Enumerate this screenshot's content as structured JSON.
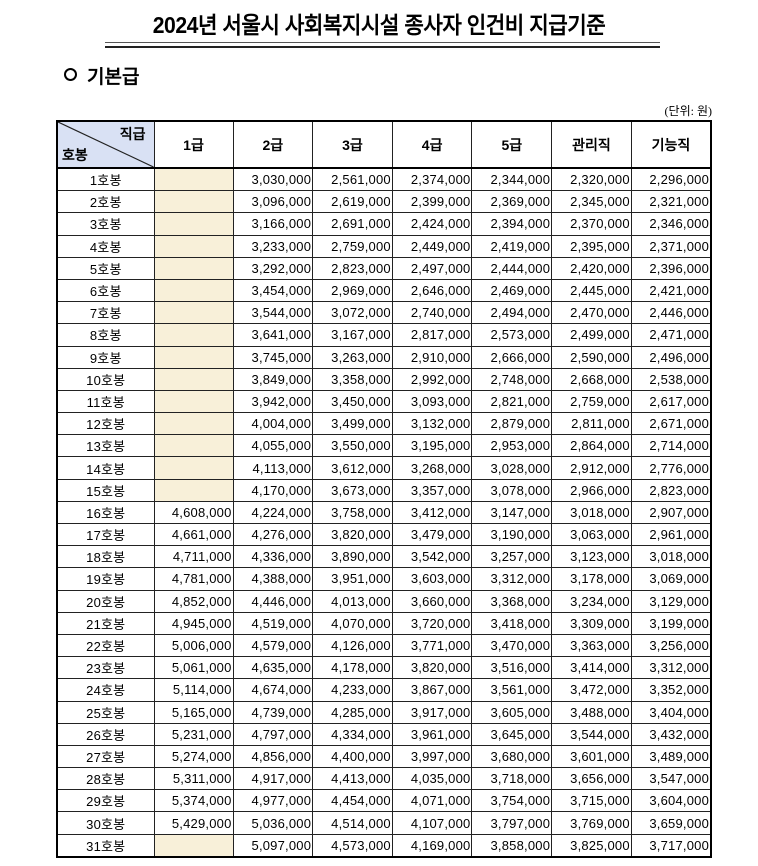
{
  "title": "2024년 서울시 사회복지시설 종사자 인건비 지급기준",
  "section": "기본급",
  "unit": "(단위: 원)",
  "table": {
    "corner_top": "직급",
    "corner_bottom": "호봉",
    "columns": [
      "1급",
      "2급",
      "3급",
      "4급",
      "5급",
      "관리직",
      "기능직"
    ],
    "rows": [
      {
        "step": "1호봉",
        "values": [
          "",
          "3,030,000",
          "2,561,000",
          "2,374,000",
          "2,344,000",
          "2,320,000",
          "2,296,000"
        ]
      },
      {
        "step": "2호봉",
        "values": [
          "",
          "3,096,000",
          "2,619,000",
          "2,399,000",
          "2,369,000",
          "2,345,000",
          "2,321,000"
        ]
      },
      {
        "step": "3호봉",
        "values": [
          "",
          "3,166,000",
          "2,691,000",
          "2,424,000",
          "2,394,000",
          "2,370,000",
          "2,346,000"
        ]
      },
      {
        "step": "4호봉",
        "values": [
          "",
          "3,233,000",
          "2,759,000",
          "2,449,000",
          "2,419,000",
          "2,395,000",
          "2,371,000"
        ]
      },
      {
        "step": "5호봉",
        "values": [
          "",
          "3,292,000",
          "2,823,000",
          "2,497,000",
          "2,444,000",
          "2,420,000",
          "2,396,000"
        ]
      },
      {
        "step": "6호봉",
        "values": [
          "",
          "3,454,000",
          "2,969,000",
          "2,646,000",
          "2,469,000",
          "2,445,000",
          "2,421,000"
        ]
      },
      {
        "step": "7호봉",
        "values": [
          "",
          "3,544,000",
          "3,072,000",
          "2,740,000",
          "2,494,000",
          "2,470,000",
          "2,446,000"
        ]
      },
      {
        "step": "8호봉",
        "values": [
          "",
          "3,641,000",
          "3,167,000",
          "2,817,000",
          "2,573,000",
          "2,499,000",
          "2,471,000"
        ]
      },
      {
        "step": "9호봉",
        "values": [
          "",
          "3,745,000",
          "3,263,000",
          "2,910,000",
          "2,666,000",
          "2,590,000",
          "2,496,000"
        ]
      },
      {
        "step": "10호봉",
        "values": [
          "",
          "3,849,000",
          "3,358,000",
          "2,992,000",
          "2,748,000",
          "2,668,000",
          "2,538,000"
        ]
      },
      {
        "step": "11호봉",
        "values": [
          "",
          "3,942,000",
          "3,450,000",
          "3,093,000",
          "2,821,000",
          "2,759,000",
          "2,617,000"
        ]
      },
      {
        "step": "12호봉",
        "values": [
          "",
          "4,004,000",
          "3,499,000",
          "3,132,000",
          "2,879,000",
          "2,811,000",
          "2,671,000"
        ]
      },
      {
        "step": "13호봉",
        "values": [
          "",
          "4,055,000",
          "3,550,000",
          "3,195,000",
          "2,953,000",
          "2,864,000",
          "2,714,000"
        ]
      },
      {
        "step": "14호봉",
        "values": [
          "",
          "4,113,000",
          "3,612,000",
          "3,268,000",
          "3,028,000",
          "2,912,000",
          "2,776,000"
        ]
      },
      {
        "step": "15호봉",
        "values": [
          "",
          "4,170,000",
          "3,673,000",
          "3,357,000",
          "3,078,000",
          "2,966,000",
          "2,823,000"
        ]
      },
      {
        "step": "16호봉",
        "values": [
          "4,608,000",
          "4,224,000",
          "3,758,000",
          "3,412,000",
          "3,147,000",
          "3,018,000",
          "2,907,000"
        ]
      },
      {
        "step": "17호봉",
        "values": [
          "4,661,000",
          "4,276,000",
          "3,820,000",
          "3,479,000",
          "3,190,000",
          "3,063,000",
          "2,961,000"
        ]
      },
      {
        "step": "18호봉",
        "values": [
          "4,711,000",
          "4,336,000",
          "3,890,000",
          "3,542,000",
          "3,257,000",
          "3,123,000",
          "3,018,000"
        ]
      },
      {
        "step": "19호봉",
        "values": [
          "4,781,000",
          "4,388,000",
          "3,951,000",
          "3,603,000",
          "3,312,000",
          "3,178,000",
          "3,069,000"
        ]
      },
      {
        "step": "20호봉",
        "values": [
          "4,852,000",
          "4,446,000",
          "4,013,000",
          "3,660,000",
          "3,368,000",
          "3,234,000",
          "3,129,000"
        ]
      },
      {
        "step": "21호봉",
        "values": [
          "4,945,000",
          "4,519,000",
          "4,070,000",
          "3,720,000",
          "3,418,000",
          "3,309,000",
          "3,199,000"
        ]
      },
      {
        "step": "22호봉",
        "values": [
          "5,006,000",
          "4,579,000",
          "4,126,000",
          "3,771,000",
          "3,470,000",
          "3,363,000",
          "3,256,000"
        ]
      },
      {
        "step": "23호봉",
        "values": [
          "5,061,000",
          "4,635,000",
          "4,178,000",
          "3,820,000",
          "3,516,000",
          "3,414,000",
          "3,312,000"
        ]
      },
      {
        "step": "24호봉",
        "values": [
          "5,114,000",
          "4,674,000",
          "4,233,000",
          "3,867,000",
          "3,561,000",
          "3,472,000",
          "3,352,000"
        ]
      },
      {
        "step": "25호봉",
        "values": [
          "5,165,000",
          "4,739,000",
          "4,285,000",
          "3,917,000",
          "3,605,000",
          "3,488,000",
          "3,404,000"
        ]
      },
      {
        "step": "26호봉",
        "values": [
          "5,231,000",
          "4,797,000",
          "4,334,000",
          "3,961,000",
          "3,645,000",
          "3,544,000",
          "3,432,000"
        ]
      },
      {
        "step": "27호봉",
        "values": [
          "5,274,000",
          "4,856,000",
          "4,400,000",
          "3,997,000",
          "3,680,000",
          "3,601,000",
          "3,489,000"
        ]
      },
      {
        "step": "28호봉",
        "values": [
          "5,311,000",
          "4,917,000",
          "4,413,000",
          "4,035,000",
          "3,718,000",
          "3,656,000",
          "3,547,000"
        ]
      },
      {
        "step": "29호봉",
        "values": [
          "5,374,000",
          "4,977,000",
          "4,454,000",
          "4,071,000",
          "3,754,000",
          "3,715,000",
          "3,604,000"
        ]
      },
      {
        "step": "30호봉",
        "values": [
          "5,429,000",
          "5,036,000",
          "4,514,000",
          "4,107,000",
          "3,797,000",
          "3,769,000",
          "3,659,000"
        ]
      },
      {
        "step": "31호봉",
        "values": [
          "",
          "5,097,000",
          "4,573,000",
          "4,169,000",
          "3,858,000",
          "3,825,000",
          "3,717,000"
        ]
      }
    ]
  },
  "colors": {
    "header_corner": "#d9e1f4",
    "empty_cell": "#f8f0d9"
  }
}
